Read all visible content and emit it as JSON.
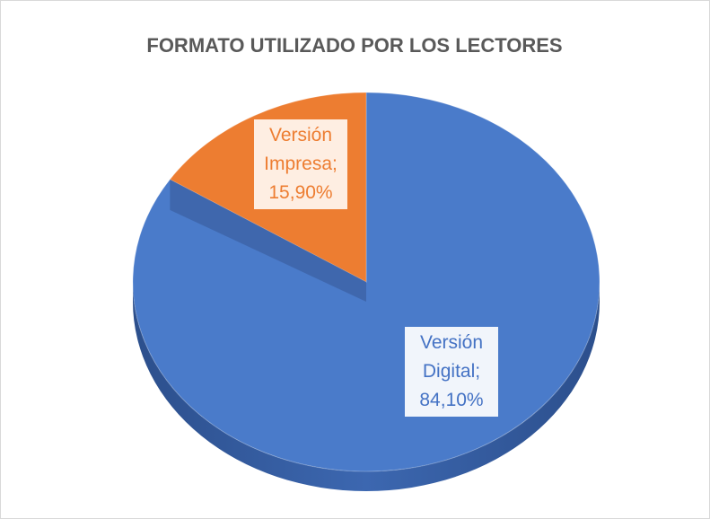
{
  "chart_data": {
    "type": "pie",
    "title": "FORMATO UTILIZADO POR LOS LECTORES",
    "categories": [
      "Versión Digital",
      "Versión Impresa"
    ],
    "values": [
      84.1,
      15.9
    ],
    "value_labels": [
      "84,10%",
      "15,90%"
    ],
    "label_separator": ";",
    "colors": [
      "#4a7bca",
      "#ed7d31"
    ],
    "label_text_colors": [
      "#4472c4",
      "#ed7d31"
    ],
    "start_angle": 0,
    "direction": "clockwise",
    "three_d": true
  }
}
